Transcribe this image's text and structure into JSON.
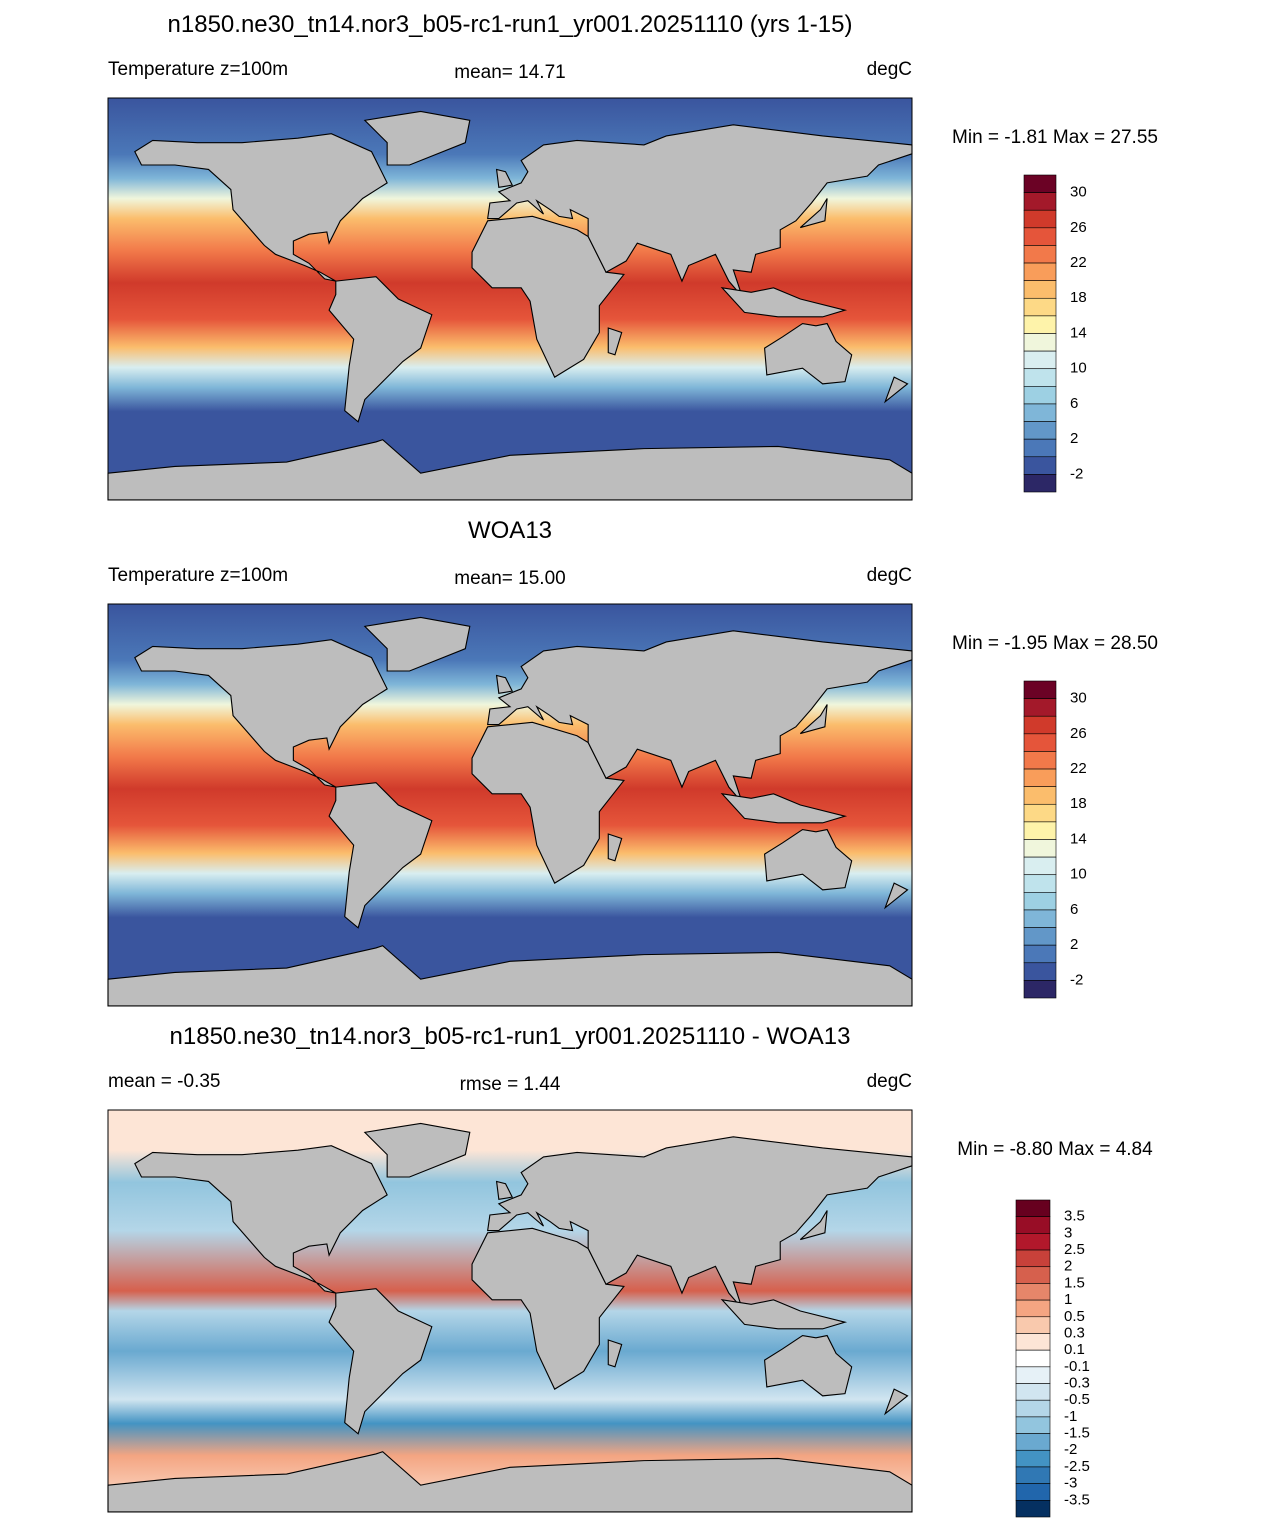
{
  "panels": [
    {
      "title": "n1850.ne30_tn14.nor3_b05-rc1-run1_yr001.20251110 (yrs 1-15)",
      "left": "Temperature z=100m",
      "center": "mean=  14.71",
      "right": "degC",
      "min_max": "Min =  -1.81 Max =  27.55",
      "colorbar": {
        "labels": [
          "30",
          "26",
          "22",
          "18",
          "14",
          "10",
          "6",
          "2",
          "-2"
        ],
        "colors": [
          "#6b0225",
          "#a3192a",
          "#d03a2b",
          "#e5553a",
          "#f2794a",
          "#f99d5a",
          "#fbbd6c",
          "#fdd986",
          "#fef3aa",
          "#f0f6dc",
          "#d9eef0",
          "#bfe3ec",
          "#9dd0e3",
          "#7fb6d8",
          "#6297c8",
          "#4b78b8",
          "#3a559e",
          "#2c2766"
        ]
      }
    },
    {
      "title": "WOA13",
      "left": "Temperature z=100m",
      "center": "mean=  15.00",
      "right": "degC",
      "min_max": "Min =  -1.95 Max =  28.50",
      "colorbar": {
        "labels": [
          "30",
          "26",
          "22",
          "18",
          "14",
          "10",
          "6",
          "2",
          "-2"
        ],
        "colors": [
          "#6b0225",
          "#a3192a",
          "#d03a2b",
          "#e5553a",
          "#f2794a",
          "#f99d5a",
          "#fbbd6c",
          "#fdd986",
          "#fef3aa",
          "#f0f6dc",
          "#d9eef0",
          "#bfe3ec",
          "#9dd0e3",
          "#7fb6d8",
          "#6297c8",
          "#4b78b8",
          "#3a559e",
          "#2c2766"
        ]
      }
    },
    {
      "title": "n1850.ne30_tn14.nor3_b05-rc1-run1_yr001.20251110 - WOA13",
      "left": "mean =  -0.35",
      "center": "rmse =   1.44",
      "right": "degC",
      "min_max": "Min =  -8.80 Max =   4.84",
      "colorbar": {
        "labels": [
          "3.5",
          "3",
          "2.5",
          "2",
          "1.5",
          "1",
          "0.5",
          "0.3",
          "0.1",
          "-0.1",
          "-0.3",
          "-0.5",
          "-1",
          "-1.5",
          "-2",
          "-2.5",
          "-3",
          "-3.5"
        ],
        "colors": [
          "#67001f",
          "#980d26",
          "#b2182b",
          "#c8413a",
          "#d6604d",
          "#e6866a",
          "#f4a582",
          "#f9c9ad",
          "#fde5d6",
          "#ffffff",
          "#e6f1f7",
          "#d1e5f0",
          "#b4d6e8",
          "#92c5de",
          "#6aa9d0",
          "#4393c3",
          "#3078b4",
          "#2166ac",
          "#053061"
        ]
      }
    }
  ]
}
